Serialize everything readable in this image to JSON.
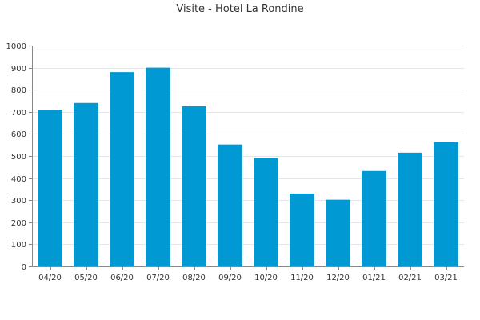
{
  "chart_data": {
    "type": "bar",
    "title": "Visite - Hotel La Rondine",
    "xlabel": "",
    "ylabel": "",
    "categories": [
      "04/20",
      "05/20",
      "06/20",
      "07/20",
      "08/20",
      "09/20",
      "10/20",
      "11/20",
      "12/20",
      "01/21",
      "02/21",
      "03/21"
    ],
    "values": [
      710,
      740,
      880,
      900,
      725,
      552,
      490,
      330,
      302,
      432,
      515,
      563
    ],
    "ylim": [
      0,
      1000
    ],
    "yticks": [
      0,
      100,
      200,
      300,
      400,
      500,
      600,
      700,
      800,
      900,
      1000
    ],
    "grid": true,
    "legend": "none",
    "bar_color": "#0099d4"
  }
}
